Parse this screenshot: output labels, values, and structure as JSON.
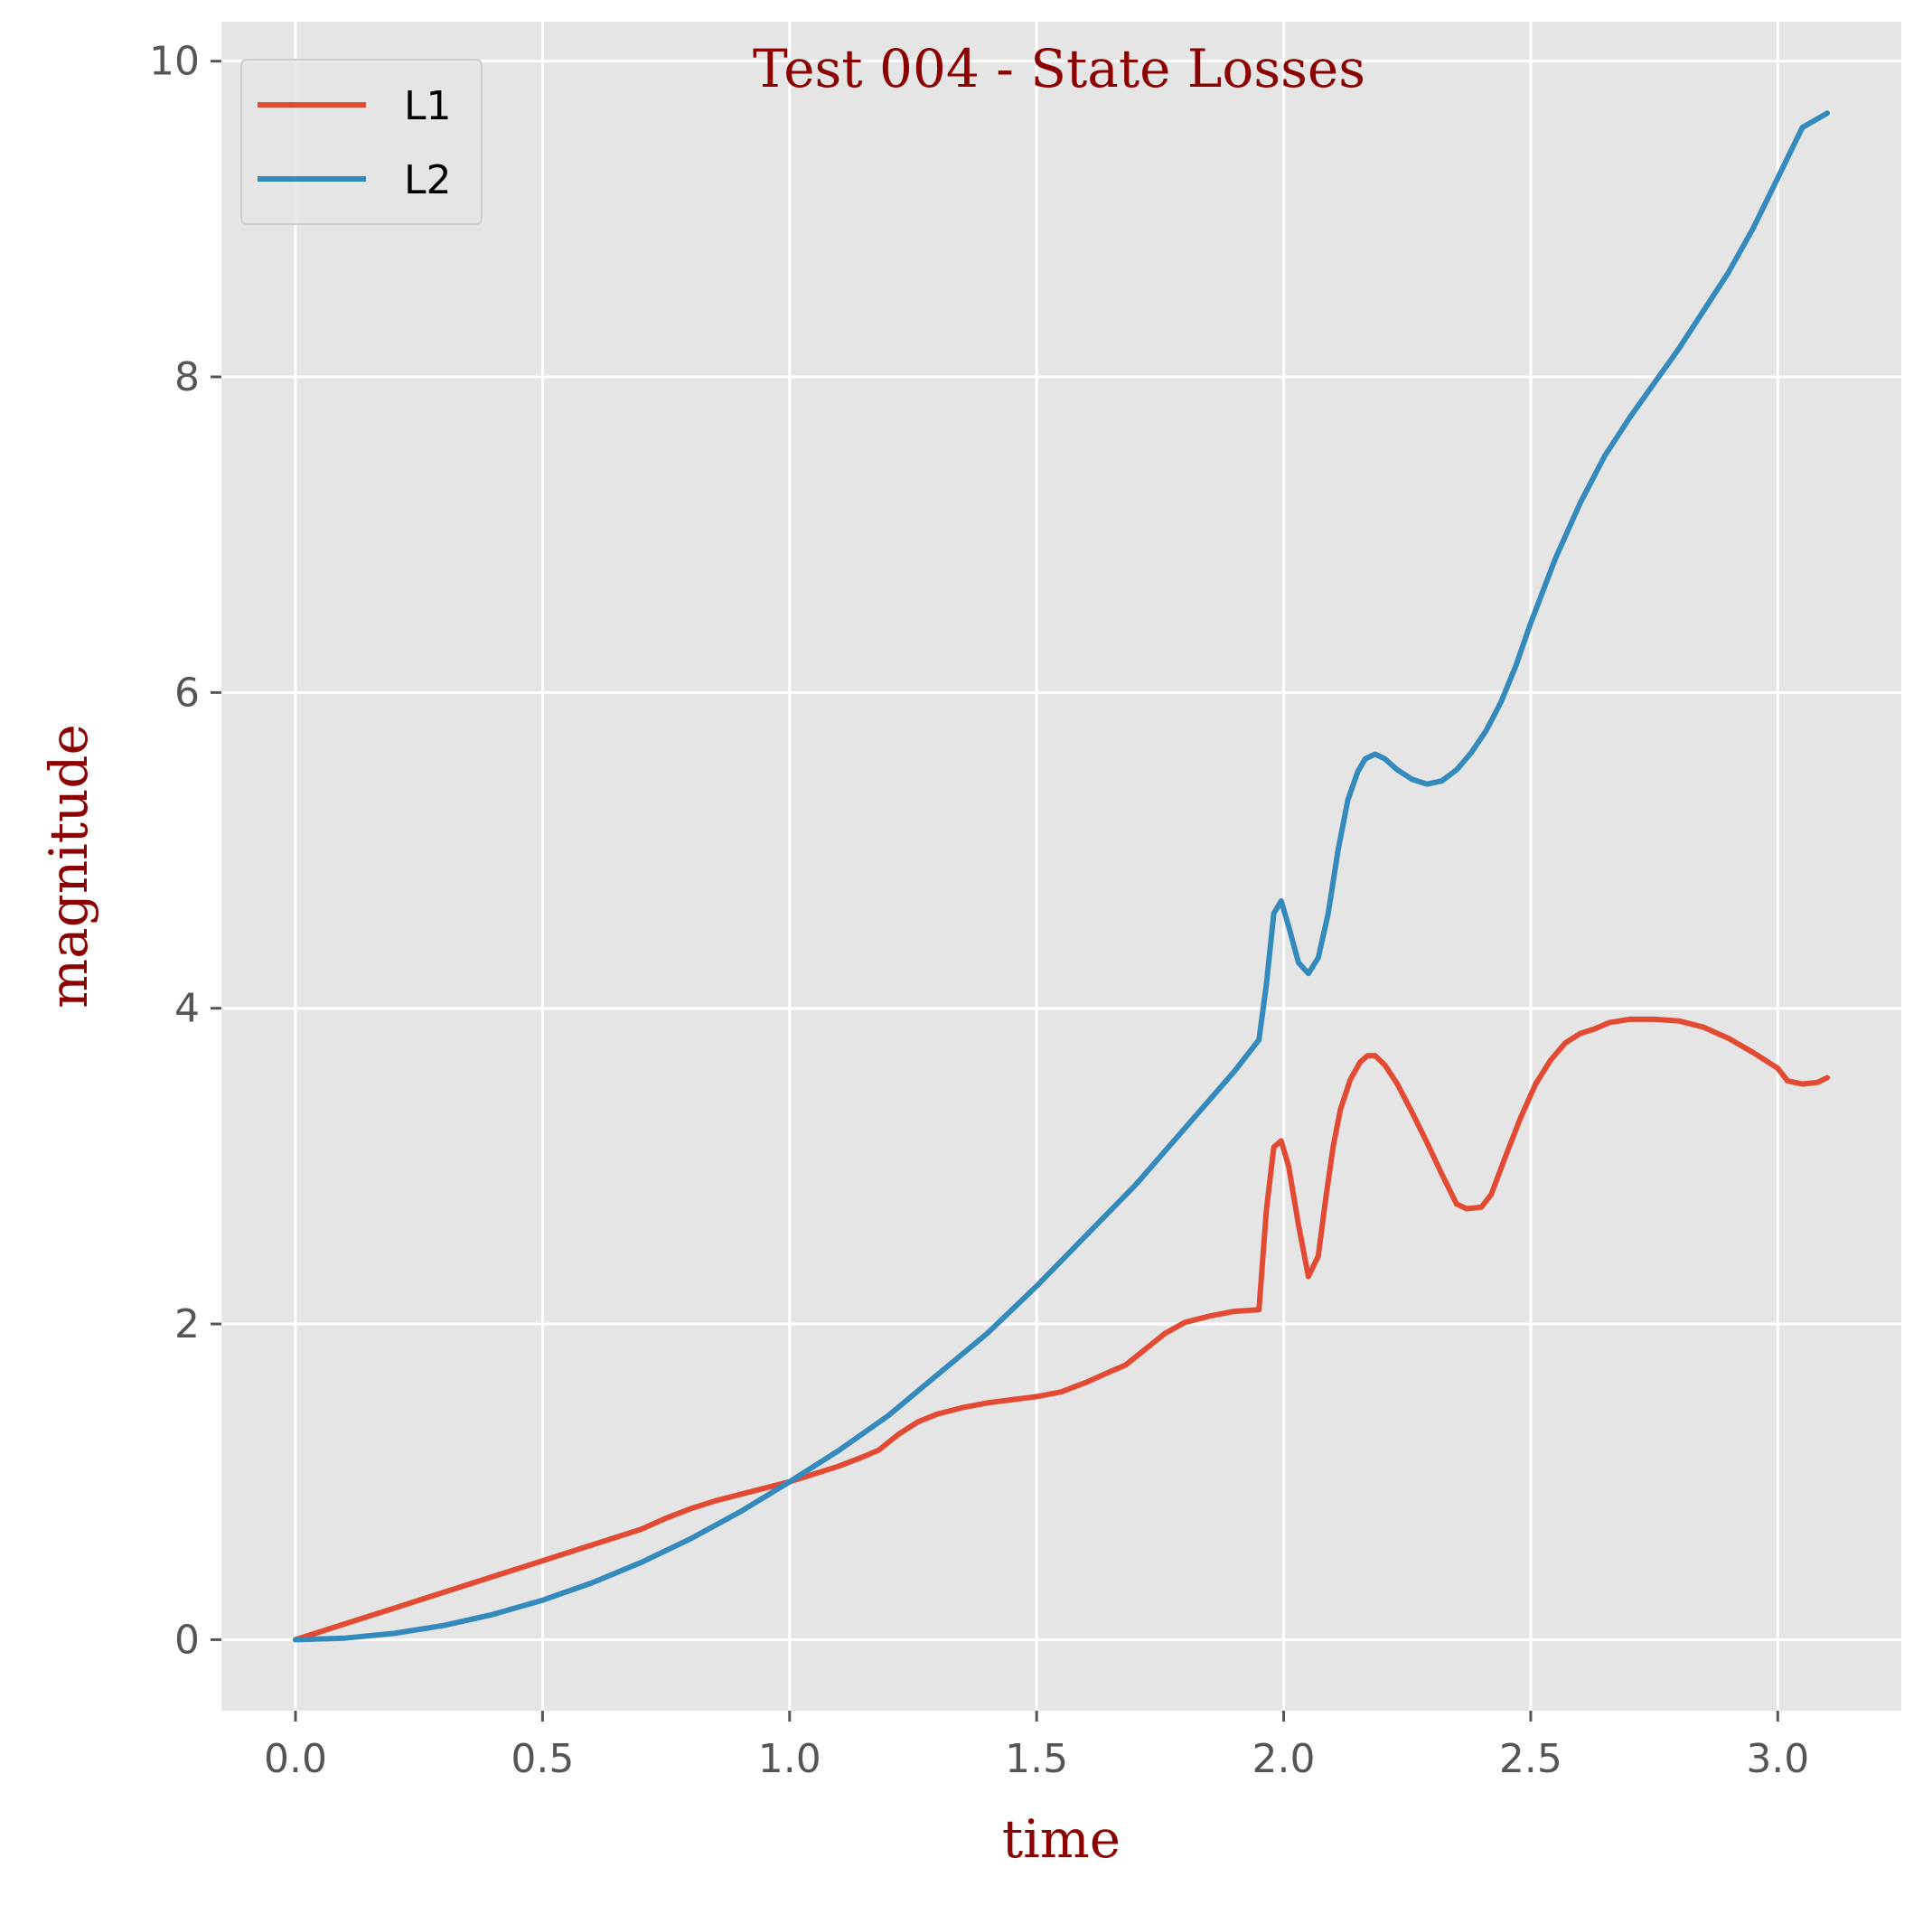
{
  "chart_data": {
    "type": "line",
    "title": "Test 004 - State Losses",
    "xlabel": "time",
    "ylabel": "magnitude",
    "xlim": [
      -0.15,
      3.25
    ],
    "ylim": [
      -0.45,
      10.25
    ],
    "xticks": [
      0.0,
      0.5,
      1.0,
      1.5,
      2.0,
      2.5,
      3.0
    ],
    "xtick_labels": [
      "0.0",
      "0.5",
      "1.0",
      "1.5",
      "2.0",
      "2.5",
      "3.0"
    ],
    "yticks": [
      0,
      2,
      4,
      6,
      8,
      10
    ],
    "ytick_labels": [
      "0",
      "2",
      "4",
      "6",
      "8",
      "10"
    ],
    "grid": true,
    "legend_position": "top-left",
    "colors": {
      "L1": "#E24A33",
      "L2": "#348ABD",
      "background": "#E5E5E5",
      "grid": "#FFFFFF"
    },
    "series": [
      {
        "name": "L1",
        "color": "#E24A33",
        "points": [
          [
            0.0,
            0.0
          ],
          [
            0.1,
            0.1
          ],
          [
            0.2,
            0.2
          ],
          [
            0.3,
            0.3
          ],
          [
            0.4,
            0.4
          ],
          [
            0.5,
            0.5
          ],
          [
            0.6,
            0.6
          ],
          [
            0.7,
            0.7
          ],
          [
            0.75,
            0.77
          ],
          [
            0.8,
            0.83
          ],
          [
            0.85,
            0.88
          ],
          [
            0.9,
            0.92
          ],
          [
            0.95,
            0.96
          ],
          [
            1.0,
            1.0
          ],
          [
            1.05,
            1.05
          ],
          [
            1.1,
            1.1
          ],
          [
            1.15,
            1.16
          ],
          [
            1.18,
            1.2
          ],
          [
            1.22,
            1.3
          ],
          [
            1.26,
            1.38
          ],
          [
            1.3,
            1.43
          ],
          [
            1.35,
            1.47
          ],
          [
            1.4,
            1.5
          ],
          [
            1.45,
            1.52
          ],
          [
            1.5,
            1.54
          ],
          [
            1.55,
            1.57
          ],
          [
            1.6,
            1.63
          ],
          [
            1.65,
            1.7
          ],
          [
            1.68,
            1.74
          ],
          [
            1.72,
            1.84
          ],
          [
            1.76,
            1.94
          ],
          [
            1.8,
            2.01
          ],
          [
            1.85,
            2.05
          ],
          [
            1.9,
            2.08
          ],
          [
            1.95,
            2.09
          ],
          [
            1.965,
            2.72
          ],
          [
            1.98,
            3.12
          ],
          [
            1.995,
            3.16
          ],
          [
            2.01,
            3.0
          ],
          [
            2.03,
            2.63
          ],
          [
            2.05,
            2.3
          ],
          [
            2.07,
            2.43
          ],
          [
            2.085,
            2.79
          ],
          [
            2.1,
            3.12
          ],
          [
            2.115,
            3.36
          ],
          [
            2.135,
            3.55
          ],
          [
            2.155,
            3.66
          ],
          [
            2.17,
            3.7
          ],
          [
            2.185,
            3.7
          ],
          [
            2.205,
            3.64
          ],
          [
            2.23,
            3.52
          ],
          [
            2.26,
            3.34
          ],
          [
            2.29,
            3.15
          ],
          [
            2.32,
            2.95
          ],
          [
            2.35,
            2.76
          ],
          [
            2.37,
            2.73
          ],
          [
            2.4,
            2.74
          ],
          [
            2.42,
            2.82
          ],
          [
            2.45,
            3.07
          ],
          [
            2.48,
            3.31
          ],
          [
            2.51,
            3.52
          ],
          [
            2.54,
            3.67
          ],
          [
            2.57,
            3.78
          ],
          [
            2.6,
            3.84
          ],
          [
            2.63,
            3.87
          ],
          [
            2.66,
            3.91
          ],
          [
            2.7,
            3.93
          ],
          [
            2.75,
            3.93
          ],
          [
            2.8,
            3.92
          ],
          [
            2.85,
            3.88
          ],
          [
            2.9,
            3.81
          ],
          [
            2.95,
            3.72
          ],
          [
            3.0,
            3.62
          ],
          [
            3.02,
            3.54
          ],
          [
            3.05,
            3.52
          ],
          [
            3.08,
            3.53
          ],
          [
            3.1,
            3.56
          ]
        ]
      },
      {
        "name": "L2",
        "color": "#348ABD",
        "points": [
          [
            0.0,
            0.0
          ],
          [
            0.1,
            0.01
          ],
          [
            0.2,
            0.04
          ],
          [
            0.3,
            0.09
          ],
          [
            0.4,
            0.16
          ],
          [
            0.5,
            0.25
          ],
          [
            0.6,
            0.36
          ],
          [
            0.7,
            0.49
          ],
          [
            0.8,
            0.64
          ],
          [
            0.9,
            0.81
          ],
          [
            1.0,
            1.0
          ],
          [
            1.1,
            1.2
          ],
          [
            1.2,
            1.42
          ],
          [
            1.3,
            1.68
          ],
          [
            1.4,
            1.94
          ],
          [
            1.5,
            2.24
          ],
          [
            1.6,
            2.56
          ],
          [
            1.7,
            2.88
          ],
          [
            1.8,
            3.24
          ],
          [
            1.9,
            3.6
          ],
          [
            1.95,
            3.8
          ],
          [
            1.965,
            4.15
          ],
          [
            1.98,
            4.6
          ],
          [
            1.995,
            4.68
          ],
          [
            2.01,
            4.52
          ],
          [
            2.03,
            4.29
          ],
          [
            2.05,
            4.22
          ],
          [
            2.07,
            4.32
          ],
          [
            2.09,
            4.6
          ],
          [
            2.11,
            5.0
          ],
          [
            2.13,
            5.32
          ],
          [
            2.15,
            5.5
          ],
          [
            2.165,
            5.58
          ],
          [
            2.185,
            5.61
          ],
          [
            2.205,
            5.58
          ],
          [
            2.23,
            5.51
          ],
          [
            2.26,
            5.45
          ],
          [
            2.29,
            5.42
          ],
          [
            2.32,
            5.44
          ],
          [
            2.35,
            5.51
          ],
          [
            2.38,
            5.62
          ],
          [
            2.41,
            5.76
          ],
          [
            2.44,
            5.94
          ],
          [
            2.47,
            6.17
          ],
          [
            2.5,
            6.44
          ],
          [
            2.55,
            6.85
          ],
          [
            2.6,
            7.2
          ],
          [
            2.65,
            7.5
          ],
          [
            2.7,
            7.74
          ],
          [
            2.75,
            7.96
          ],
          [
            2.8,
            8.18
          ],
          [
            2.85,
            8.42
          ],
          [
            2.9,
            8.66
          ],
          [
            2.95,
            8.94
          ],
          [
            3.0,
            9.26
          ],
          [
            3.05,
            9.58
          ],
          [
            3.1,
            9.67
          ]
        ]
      }
    ]
  }
}
